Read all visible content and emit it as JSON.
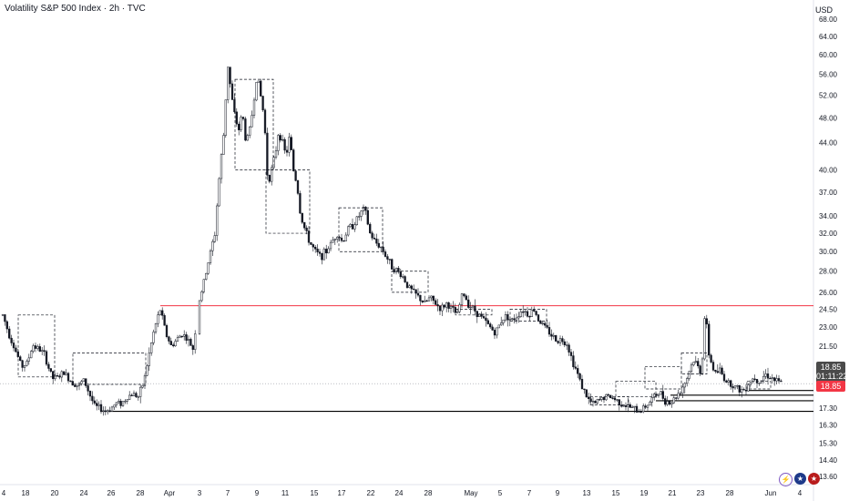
{
  "header": {
    "title": "Volatility S&P 500 Index · 2h · TVC",
    "currency": "USD"
  },
  "price_labels": {
    "last_price": "18.85",
    "countdown": "01:11:22",
    "last_price_red": "18.85"
  },
  "icons": [
    "lightning-icon",
    "us-flag-icon",
    "us-flag-icon"
  ],
  "colors": {
    "resistance_line": "#f23645",
    "support_line": "#000000",
    "candles": "#131722"
  },
  "chart_data": {
    "type": "candlestick",
    "title": "Volatility S&P 500 Index · 2h · TVC",
    "ylabel": "USD",
    "y_scale": "log",
    "yticks": [
      "68.00",
      "64.00",
      "60.00",
      "56.00",
      "52.00",
      "48.00",
      "44.00",
      "40.00",
      "37.00",
      "34.00",
      "32.00",
      "30.00",
      "28.00",
      "26.00",
      "24.50",
      "23.00",
      "21.50",
      "18.85",
      "17.30",
      "16.30",
      "15.30",
      "14.40",
      "13.60"
    ],
    "xticks": [
      "4",
      "18",
      "20",
      "24",
      "26",
      "28",
      "Apr",
      "3",
      "7",
      "9",
      "11",
      "15",
      "17",
      "22",
      "24",
      "28",
      "May",
      "5",
      "7",
      "9",
      "13",
      "15",
      "19",
      "21",
      "23",
      "28",
      "Jun",
      "4"
    ],
    "horizontal_levels": [
      {
        "value": 24.8,
        "color": "red"
      },
      {
        "value": 17.1,
        "color": "black"
      },
      {
        "value": 18.1,
        "color": "black"
      },
      {
        "value": 17.75,
        "color": "black"
      },
      {
        "value": 18.4,
        "color": "black"
      }
    ],
    "path": [
      [
        3,
        24.0
      ],
      [
        10,
        22.4
      ],
      [
        18,
        21.0
      ],
      [
        24,
        20.0
      ],
      [
        30,
        20.3
      ],
      [
        36,
        21.6
      ],
      [
        42,
        21.3
      ],
      [
        48,
        21.0
      ],
      [
        54,
        19.8
      ],
      [
        58,
        19.2
      ],
      [
        64,
        19.3
      ],
      [
        70,
        19.6
      ],
      [
        78,
        19.0
      ],
      [
        86,
        18.7
      ],
      [
        92,
        19.1
      ],
      [
        98,
        18.2
      ],
      [
        104,
        17.4
      ],
      [
        110,
        17.3
      ],
      [
        116,
        17.1
      ],
      [
        122,
        17.3
      ],
      [
        128,
        17.6
      ],
      [
        134,
        17.6
      ],
      [
        140,
        18.0
      ],
      [
        146,
        18.2
      ],
      [
        152,
        18.0
      ],
      [
        158,
        19.0
      ],
      [
        164,
        21.0
      ],
      [
        170,
        23.0
      ],
      [
        176,
        24.5
      ],
      [
        182,
        22.5
      ],
      [
        188,
        21.5
      ],
      [
        194,
        22.0
      ],
      [
        200,
        22.5
      ],
      [
        206,
        22.0
      ],
      [
        212,
        21.3
      ],
      [
        218,
        25.0
      ],
      [
        224,
        27.0
      ],
      [
        230,
        29.5
      ],
      [
        236,
        32.0
      ],
      [
        240,
        38.0
      ],
      [
        246,
        46.0
      ],
      [
        250,
        58.0
      ],
      [
        254,
        52.0
      ],
      [
        258,
        48.0
      ],
      [
        262,
        46.0
      ],
      [
        266,
        49.0
      ],
      [
        270,
        44.0
      ],
      [
        274,
        46.0
      ],
      [
        278,
        50.0
      ],
      [
        282,
        56.0
      ],
      [
        286,
        52.0
      ],
      [
        290,
        48.0
      ],
      [
        294,
        38.0
      ],
      [
        298,
        40.0
      ],
      [
        302,
        42.0
      ],
      [
        306,
        46.0
      ],
      [
        310,
        44.0
      ],
      [
        314,
        42.0
      ],
      [
        318,
        45.0
      ],
      [
        322,
        40.0
      ],
      [
        326,
        38.0
      ],
      [
        330,
        34.0
      ],
      [
        336,
        32.0
      ],
      [
        340,
        31.0
      ],
      [
        346,
        30.0
      ],
      [
        352,
        29.5
      ],
      [
        358,
        30.0
      ],
      [
        364,
        31.0
      ],
      [
        370,
        32.0
      ],
      [
        376,
        31.0
      ],
      [
        382,
        32.5
      ],
      [
        388,
        33.0
      ],
      [
        394,
        34.0
      ],
      [
        400,
        35.0
      ],
      [
        406,
        32.0
      ],
      [
        412,
        31.0
      ],
      [
        418,
        30.5
      ],
      [
        424,
        29.5
      ],
      [
        430,
        28.5
      ],
      [
        436,
        28.0
      ],
      [
        442,
        27.5
      ],
      [
        448,
        26.5
      ],
      [
        454,
        26.0
      ],
      [
        460,
        25.5
      ],
      [
        466,
        25.0
      ],
      [
        472,
        25.5
      ],
      [
        478,
        25.0
      ],
      [
        484,
        24.5
      ],
      [
        490,
        25.0
      ],
      [
        496,
        24.5
      ],
      [
        502,
        24.0
      ],
      [
        508,
        26.0
      ],
      [
        514,
        25.0
      ],
      [
        520,
        24.5
      ],
      [
        526,
        24.0
      ],
      [
        532,
        23.5
      ],
      [
        538,
        23.0
      ],
      [
        544,
        22.5
      ],
      [
        550,
        23.5
      ],
      [
        556,
        24.0
      ],
      [
        562,
        23.5
      ],
      [
        568,
        24.0
      ],
      [
        574,
        24.5
      ],
      [
        580,
        24.0
      ],
      [
        586,
        24.5
      ],
      [
        592,
        23.5
      ],
      [
        598,
        23.0
      ],
      [
        604,
        22.5
      ],
      [
        610,
        22.0
      ],
      [
        616,
        22.0
      ],
      [
        622,
        21.8
      ],
      [
        628,
        20.5
      ],
      [
        634,
        19.5
      ],
      [
        640,
        18.5
      ],
      [
        646,
        17.8
      ],
      [
        652,
        17.5
      ],
      [
        658,
        17.8
      ],
      [
        664,
        18.0
      ],
      [
        670,
        18.0
      ],
      [
        676,
        17.8
      ],
      [
        682,
        17.6
      ],
      [
        688,
        17.4
      ],
      [
        694,
        17.3
      ],
      [
        700,
        17.1
      ],
      [
        706,
        17.3
      ],
      [
        712,
        17.6
      ],
      [
        718,
        18.0
      ],
      [
        724,
        18.3
      ],
      [
        730,
        17.8
      ],
      [
        736,
        17.6
      ],
      [
        742,
        18.0
      ],
      [
        748,
        18.5
      ],
      [
        754,
        19.2
      ],
      [
        758,
        20.0
      ],
      [
        762,
        20.5
      ],
      [
        766,
        20.0
      ],
      [
        770,
        19.5
      ],
      [
        774,
        24.5
      ],
      [
        778,
        21.0
      ],
      [
        782,
        20.0
      ],
      [
        786,
        19.5
      ],
      [
        790,
        19.8
      ],
      [
        794,
        19.3
      ],
      [
        798,
        19.0
      ],
      [
        804,
        18.8
      ],
      [
        810,
        18.5
      ],
      [
        816,
        18.4
      ],
      [
        822,
        18.9
      ],
      [
        828,
        19.3
      ],
      [
        834,
        19.0
      ],
      [
        840,
        19.5
      ],
      [
        846,
        19.3
      ],
      [
        852,
        19.0
      ],
      [
        858,
        18.85
      ]
    ]
  }
}
